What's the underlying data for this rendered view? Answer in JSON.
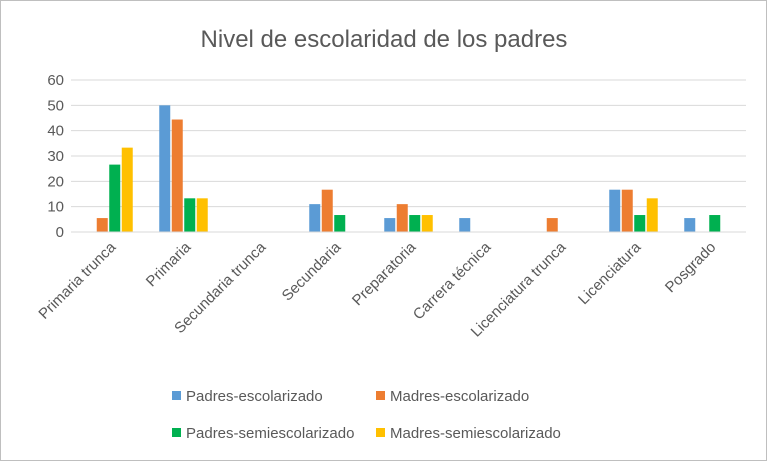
{
  "chart_data": {
    "type": "bar",
    "title": "Nivel de escolaridad de los padres",
    "xlabel": "",
    "ylabel": "",
    "ylim": [
      0,
      60
    ],
    "yticks": [
      0,
      10,
      20,
      30,
      40,
      50,
      60
    ],
    "grid": true,
    "legend_position": "bottom",
    "categories": [
      "Primaria trunca",
      "Primaria",
      "Secundaria trunca",
      "Secundaria",
      "Preparatoria",
      "Carrera técnica",
      "Licenciatura trunca",
      "Licenciatura",
      "Posgrado"
    ],
    "series": [
      {
        "name": "Padres-escolarizado",
        "color": "#5b9bd5",
        "values": [
          0,
          50,
          0,
          11,
          5.5,
          5.5,
          0,
          16.7,
          5.5
        ]
      },
      {
        "name": "Madres-escolarizado",
        "color": "#ed7d31",
        "values": [
          5.5,
          44.4,
          0,
          16.7,
          11,
          0,
          5.5,
          16.7,
          0
        ]
      },
      {
        "name": "Padres-semiescolarizado",
        "color": "#00b050",
        "values": [
          26.6,
          13.3,
          0,
          6.7,
          6.7,
          0,
          0,
          6.7,
          6.7
        ]
      },
      {
        "name": "Madres-semiescolarizado",
        "color": "#ffc000",
        "values": [
          33.3,
          13.3,
          0,
          0,
          6.7,
          0,
          0,
          13.3,
          0
        ]
      }
    ]
  }
}
